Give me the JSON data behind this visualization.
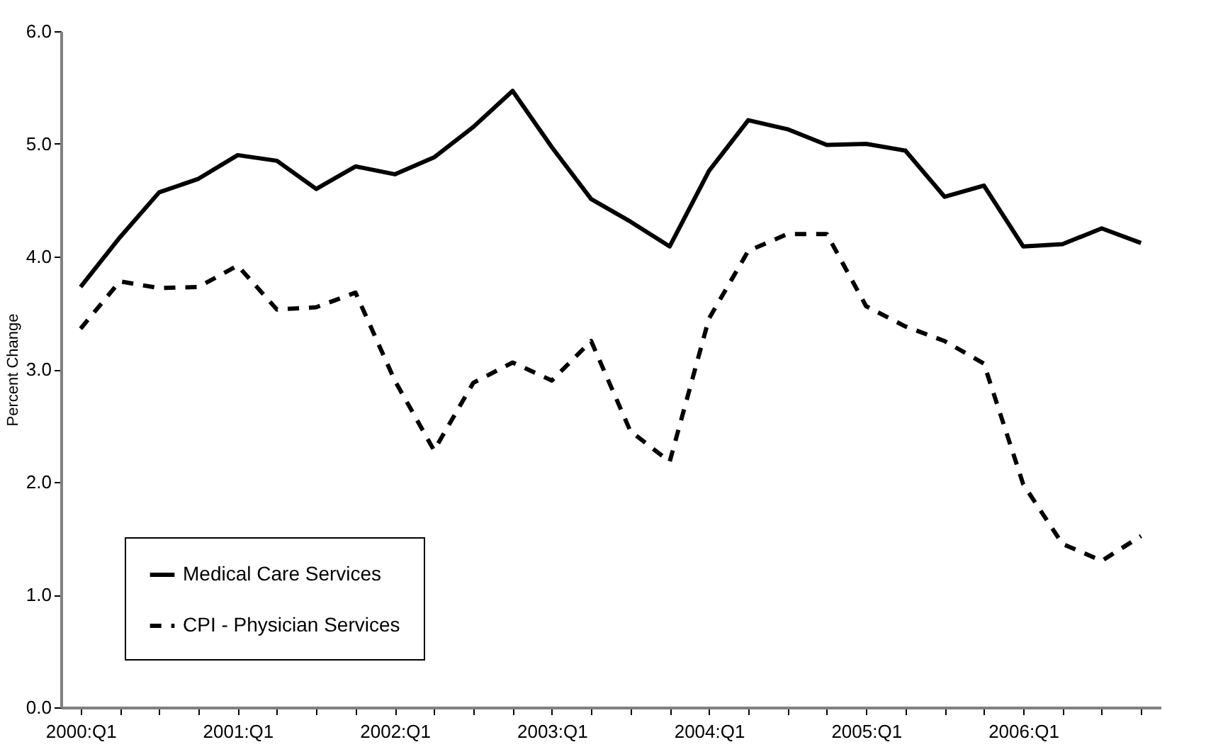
{
  "chart_data": {
    "type": "line",
    "ylabel": "Percent Change",
    "categories": [
      "2000:Q1",
      null,
      null,
      null,
      "2001:Q1",
      null,
      null,
      null,
      "2002:Q1",
      null,
      null,
      null,
      "2003:Q1",
      null,
      null,
      null,
      "2004:Q1",
      null,
      null,
      null,
      "2005:Q1",
      null,
      null,
      null,
      "2006:Q1",
      null,
      null,
      null
    ],
    "series": [
      {
        "name": "Medical Care Services",
        "color": "#000000",
        "line_style": "solid",
        "values": [
          3.73,
          4.17,
          4.57,
          4.69,
          4.9,
          4.85,
          4.6,
          4.8,
          4.73,
          4.88,
          5.15,
          5.47,
          4.97,
          4.51,
          4.31,
          4.09,
          4.76,
          5.21,
          5.13,
          4.99,
          5.0,
          4.94,
          4.53,
          4.63,
          4.09,
          4.11,
          4.25,
          4.12
        ]
      },
      {
        "name": "CPI - Physician Services",
        "color": "#000000",
        "line_style": "dashed",
        "values": [
          3.36,
          3.78,
          3.72,
          3.73,
          3.92,
          3.53,
          3.55,
          3.68,
          2.9,
          2.28,
          2.88,
          3.06,
          2.9,
          3.25,
          2.45,
          2.18,
          3.45,
          4.05,
          4.2,
          4.2,
          3.56,
          3.38,
          3.25,
          3.05,
          1.98,
          1.45,
          1.3,
          1.52
        ]
      }
    ],
    "ylim": [
      0,
      6
    ],
    "yticks": [
      {
        "value": 0,
        "label": "0.0"
      },
      {
        "value": 1,
        "label": "1.0"
      },
      {
        "value": 2,
        "label": "2.0"
      },
      {
        "value": 3,
        "label": "3.0"
      },
      {
        "value": 4,
        "label": "4.0"
      },
      {
        "value": 5,
        "label": "5.0"
      },
      {
        "value": 6,
        "label": "6.0"
      }
    ],
    "grid": false,
    "legend": "bottom left",
    "marker": "none"
  }
}
